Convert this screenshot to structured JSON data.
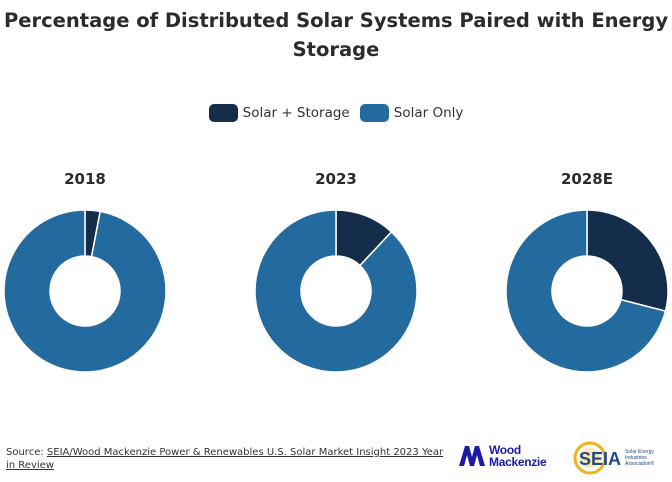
{
  "title": "Percentage of Distributed Solar Systems Paired with Energy Storage",
  "legend": [
    {
      "label": "Solar + Storage",
      "color": "#132d4a"
    },
    {
      "label": "Solar Only",
      "color": "#236b9e"
    }
  ],
  "chart_data": {
    "type": "pie",
    "variant": "donut",
    "series_names": [
      "Solar + Storage",
      "Solar Only"
    ],
    "colors": [
      "#132d4a",
      "#236b9e"
    ],
    "charts": [
      {
        "label": "2018",
        "values": [
          3,
          97
        ]
      },
      {
        "label": "2023",
        "values": [
          12,
          88
        ]
      },
      {
        "label": "2028E",
        "values": [
          29,
          71
        ]
      }
    ]
  },
  "footer": {
    "source_prefix": "Source: ",
    "source_text": "SEIA/Wood Mackenzie Power & Renewables U.S. Solar Market Insight 2023 Year in Review",
    "logo_wm_line1": "Wood",
    "logo_wm_line2": "Mackenzie",
    "logo_seia_text": "SEIA",
    "logo_seia_sub": "Solar Energy Industries Association®"
  }
}
